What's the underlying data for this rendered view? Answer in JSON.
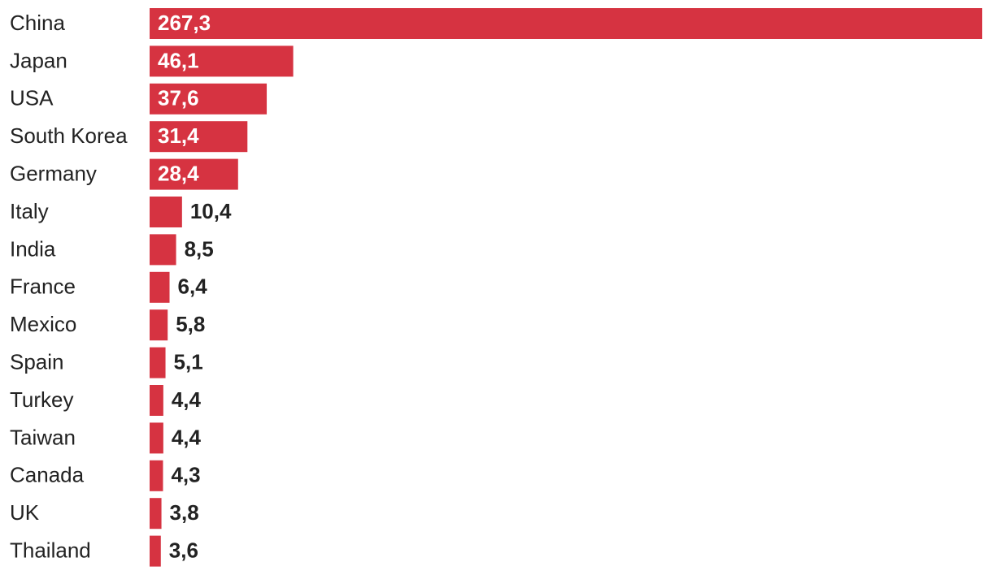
{
  "chart_data": {
    "type": "bar",
    "orientation": "horizontal",
    "color": "#d63341",
    "categories": [
      "China",
      "Japan",
      "USA",
      "South Korea",
      "Germany",
      "Italy",
      "India",
      "France",
      "Mexico",
      "Spain",
      "Turkey",
      "Taiwan",
      "Canada",
      "UK",
      "Thailand"
    ],
    "values": [
      267.3,
      46.1,
      37.6,
      31.4,
      28.4,
      10.4,
      8.5,
      6.4,
      5.8,
      5.1,
      4.4,
      4.4,
      4.3,
      3.8,
      3.6
    ],
    "value_labels": [
      "267,3",
      "46,1",
      "37,6",
      "31,4",
      "28,4",
      "10,4",
      "8,5",
      "6,4",
      "5,8",
      "5,1",
      "4,4",
      "4,4",
      "4,3",
      "3,8",
      "3,6"
    ]
  }
}
